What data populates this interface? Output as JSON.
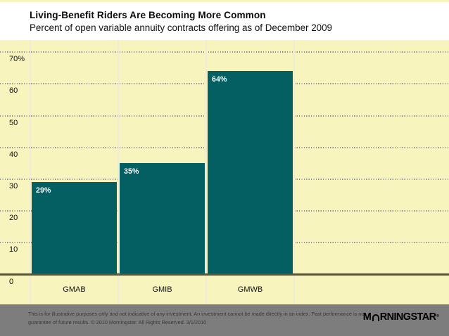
{
  "chart_data": {
    "type": "bar",
    "title": "Living-Benefit Riders Are Becoming More Common",
    "subtitle": "Percent of open variable annuity contracts offering as of December 2009",
    "categories": [
      "GMAB",
      "GMIB",
      "GMWB"
    ],
    "values": [
      29,
      35,
      64
    ],
    "value_labels": [
      "29%",
      "35%",
      "64%"
    ],
    "xlabel": "",
    "ylabel": "",
    "ylim": [
      0,
      74
    ],
    "yticks": [
      {
        "value": 70,
        "label": "70%"
      },
      {
        "value": 60,
        "label": "60"
      },
      {
        "value": 50,
        "label": "50"
      },
      {
        "value": 40,
        "label": "40"
      },
      {
        "value": 30,
        "label": "30"
      },
      {
        "value": 20,
        "label": "20"
      },
      {
        "value": 10,
        "label": "10"
      },
      {
        "value": 0,
        "label": "0"
      }
    ],
    "grid": "horizontal dotted gridlines spanning full width; solid dark baseline at 0",
    "legend": "none",
    "bar_color": "#045F63",
    "plot_background": "#F8F4BE"
  },
  "footer": {
    "disclaimer_line1": "This is for illustrative purposes only and not indicative of any investment. An investment cannot be made directly in an index. Past performance is no",
    "disclaimer_line2": "guarantee of future results. © 2010 Morningstar. All Rights Reserved. 3/1/2010",
    "logo": {
      "m": "M",
      "rest": "RNINGSTAR",
      "registered": "®"
    }
  },
  "colors": {
    "background_yellow": "#F8F4BE",
    "header_background": "#FFFFFF",
    "bar_teal": "#045F63",
    "footer_gray": "#7D7D7D",
    "baseline_olive": "#55553F",
    "gridline_dots": "#8D8F96",
    "column_separator": "#EDECDB",
    "bar_value_text": "#FFFFFF"
  }
}
